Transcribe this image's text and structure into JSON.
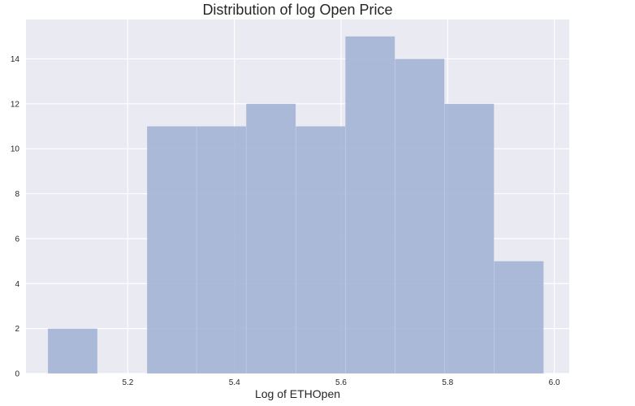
{
  "chart_data": {
    "type": "bar",
    "subtype": "histogram",
    "title": "Distribution of log Open Price",
    "xlabel": "Log of ETHOpen",
    "ylabel": "",
    "bins": [
      {
        "x0": 5.05,
        "x1": 5.143,
        "count": 2
      },
      {
        "x0": 5.143,
        "x1": 5.236,
        "count": 0
      },
      {
        "x0": 5.236,
        "x1": 5.329,
        "count": 11
      },
      {
        "x0": 5.329,
        "x1": 5.422,
        "count": 11
      },
      {
        "x0": 5.422,
        "x1": 5.515,
        "count": 12
      },
      {
        "x0": 5.515,
        "x1": 5.608,
        "count": 11
      },
      {
        "x0": 5.608,
        "x1": 5.701,
        "count": 15
      },
      {
        "x0": 5.701,
        "x1": 5.794,
        "count": 14
      },
      {
        "x0": 5.794,
        "x1": 5.887,
        "count": 12
      },
      {
        "x0": 5.887,
        "x1": 5.98,
        "count": 5
      }
    ],
    "xlim": [
      5.009,
      6.028
    ],
    "ylim": [
      0,
      15.75
    ],
    "xticks": [
      5.2,
      5.4,
      5.6,
      5.8,
      6.0
    ],
    "xtick_labels": [
      "5.2",
      "5.4",
      "5.6",
      "5.8",
      "6.0"
    ],
    "yticks": [
      0,
      2,
      4,
      6,
      8,
      10,
      12,
      14
    ],
    "ytick_labels": [
      "0",
      "2",
      "4",
      "6",
      "8",
      "10",
      "12",
      "14"
    ],
    "grid": true,
    "legend": "none",
    "colors": {
      "plot_background": "#eaeaf2",
      "grid": "#ffffff",
      "bar": "#a4b4d5",
      "text": "#262626"
    }
  }
}
